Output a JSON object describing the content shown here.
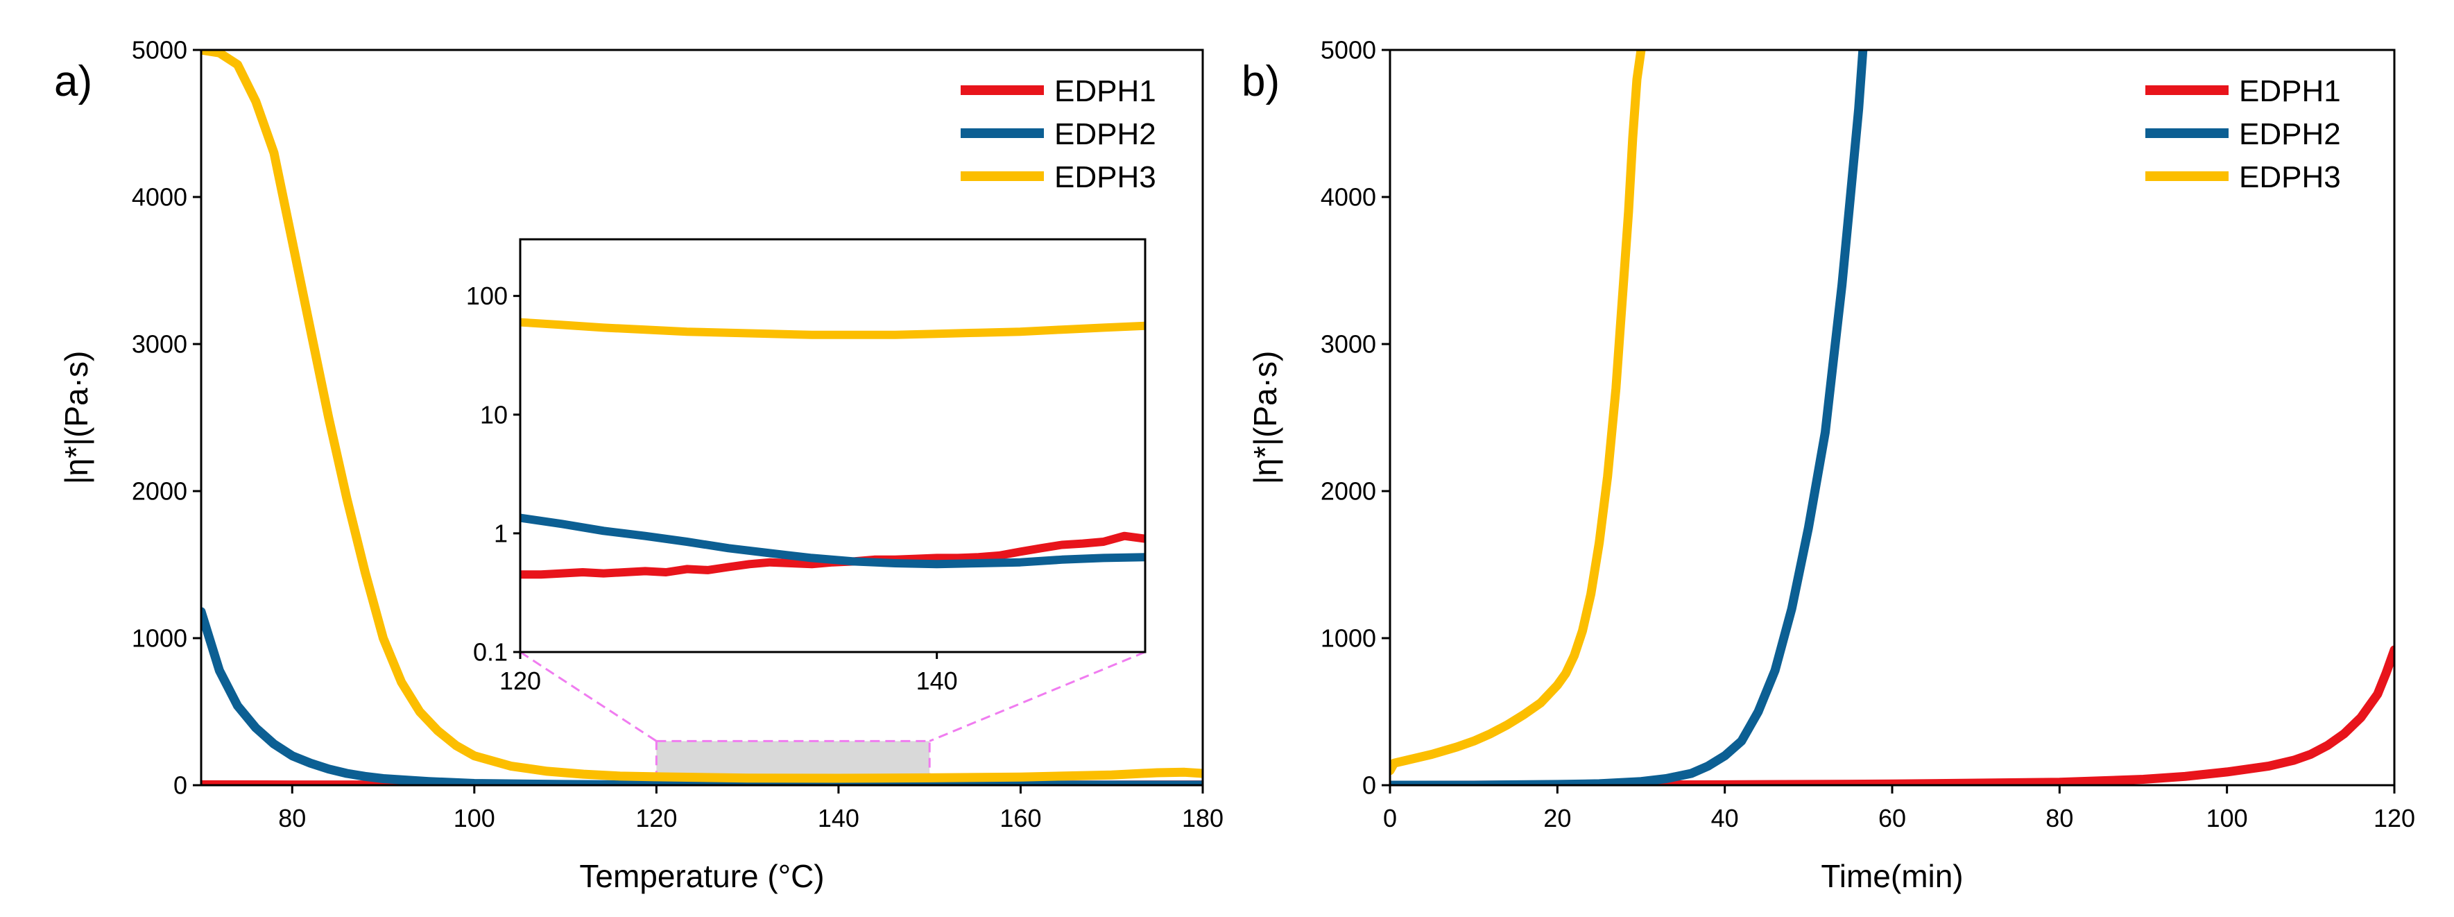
{
  "colors": {
    "EDPH1": "#e8141b",
    "EDPH2": "#0c5f93",
    "EDPH3": "#fcbe00",
    "zoom_box": "#d9d9d9",
    "zoom_line": "#f07cf0"
  },
  "chart_data": [
    {
      "type": "line",
      "panel_label": "a)",
      "xlabel": "Temperature (°C)",
      "ylabel": "|η*|(Pa·s)",
      "xlim": [
        70,
        180
      ],
      "ylim": [
        0,
        5000
      ],
      "xticks": [
        80,
        100,
        120,
        140,
        160,
        180
      ],
      "xtick_labels": [
        "80",
        "100",
        "120",
        "140",
        "160",
        "180"
      ],
      "yticks": [
        0,
        1000,
        2000,
        3000,
        4000,
        5000
      ],
      "ytick_labels": [
        "0",
        "1000",
        "2000",
        "3000",
        "4000",
        "5000"
      ],
      "legend": [
        "EDPH1",
        "EDPH2",
        "EDPH3"
      ],
      "legend_position": "top-right",
      "zoom_region": {
        "x": [
          120,
          150
        ],
        "y": [
          0,
          300
        ]
      },
      "series": [
        {
          "name": "EDPH1",
          "x": [
            70,
            80,
            90,
            100,
            110,
            120,
            130,
            140,
            150,
            160,
            170,
            180
          ],
          "y": [
            3,
            2,
            1.5,
            1,
            0.8,
            0.5,
            0.5,
            0.6,
            0.8,
            1,
            1.5,
            2
          ]
        },
        {
          "name": "EDPH2",
          "x": [
            70,
            72,
            74,
            76,
            78,
            80,
            82,
            84,
            86,
            88,
            90,
            95,
            100,
            110,
            120,
            140,
            160,
            180
          ],
          "y": [
            1180,
            780,
            540,
            390,
            280,
            200,
            150,
            110,
            80,
            60,
            45,
            25,
            12,
            5,
            1.3,
            0.6,
            0.6,
            0.6
          ]
        },
        {
          "name": "EDPH3",
          "x": [
            70,
            72,
            74,
            76,
            78,
            80,
            82,
            84,
            86,
            88,
            90,
            92,
            94,
            96,
            98,
            100,
            104,
            108,
            112,
            116,
            120,
            130,
            140,
            150,
            160,
            170,
            175,
            178,
            180
          ],
          "y": [
            5000,
            4980,
            4900,
            4650,
            4300,
            3700,
            3100,
            2500,
            1950,
            1450,
            1000,
            700,
            500,
            370,
            270,
            200,
            130,
            95,
            75,
            62,
            57,
            48,
            47,
            50,
            55,
            70,
            85,
            88,
            80
          ]
        }
      ]
    },
    {
      "type": "line",
      "panel": "inset",
      "yscale": "log",
      "xlim": [
        120,
        150
      ],
      "ylim": [
        0.1,
        300
      ],
      "xticks": [
        120,
        140
      ],
      "xtick_labels": [
        "120",
        "140"
      ],
      "yticks": [
        0.1,
        1,
        10,
        100
      ],
      "ytick_labels": [
        "0.1",
        "1",
        "10",
        "100"
      ],
      "series": [
        {
          "name": "EDPH1",
          "x": [
            120,
            121,
            122,
            123,
            124,
            125,
            126,
            127,
            128,
            129,
            130,
            131,
            132,
            133,
            134,
            135,
            136,
            137,
            138,
            139,
            140,
            141,
            142,
            143,
            144,
            145,
            146,
            147,
            148,
            149,
            150
          ],
          "y": [
            0.45,
            0.45,
            0.46,
            0.47,
            0.46,
            0.47,
            0.48,
            0.47,
            0.5,
            0.49,
            0.52,
            0.55,
            0.57,
            0.56,
            0.55,
            0.57,
            0.58,
            0.6,
            0.6,
            0.61,
            0.62,
            0.62,
            0.63,
            0.65,
            0.7,
            0.75,
            0.8,
            0.82,
            0.85,
            0.95,
            0.9
          ]
        },
        {
          "name": "EDPH2",
          "x": [
            120,
            122,
            124,
            126,
            128,
            130,
            132,
            134,
            136,
            138,
            140,
            142,
            144,
            146,
            148,
            150
          ],
          "y": [
            1.35,
            1.2,
            1.05,
            0.95,
            0.85,
            0.75,
            0.68,
            0.62,
            0.58,
            0.56,
            0.55,
            0.56,
            0.57,
            0.6,
            0.62,
            0.63
          ]
        },
        {
          "name": "EDPH3",
          "x": [
            120,
            122,
            124,
            126,
            128,
            130,
            132,
            134,
            136,
            138,
            140,
            142,
            144,
            146,
            148,
            150
          ],
          "y": [
            60,
            57,
            54,
            52,
            50,
            49,
            48,
            47,
            47,
            47,
            48,
            49,
            50,
            52,
            54,
            56
          ]
        }
      ]
    },
    {
      "type": "line",
      "panel_label": "b)",
      "xlabel": "Time(min)",
      "ylabel": "|η*|(Pa·s)",
      "xlim": [
        0,
        120
      ],
      "ylim": [
        0,
        5000
      ],
      "xticks": [
        0,
        20,
        40,
        60,
        80,
        100,
        120
      ],
      "xtick_labels": [
        "0",
        "20",
        "40",
        "60",
        "80",
        "100",
        "120"
      ],
      "yticks": [
        0,
        1000,
        2000,
        3000,
        4000,
        5000
      ],
      "ytick_labels": [
        "0",
        "1000",
        "2000",
        "3000",
        "4000",
        "5000"
      ],
      "legend": [
        "EDPH1",
        "EDPH2",
        "EDPH3"
      ],
      "legend_position": "top-right",
      "series": [
        {
          "name": "EDPH1",
          "x": [
            0,
            20,
            40,
            60,
            80,
            90,
            95,
            100,
            105,
            108,
            110,
            112,
            114,
            116,
            118,
            119,
            120
          ],
          "y": [
            0,
            1,
            3,
            8,
            20,
            40,
            60,
            90,
            130,
            170,
            210,
            270,
            350,
            460,
            620,
            760,
            920
          ]
        },
        {
          "name": "EDPH2",
          "x": [
            0,
            10,
            20,
            25,
            30,
            33,
            36,
            38,
            40,
            42,
            43,
            44,
            46,
            48,
            50,
            52,
            53,
            54,
            55,
            56,
            56.5
          ],
          "y": [
            0,
            0,
            5,
            10,
            25,
            45,
            80,
            130,
            200,
            300,
            400,
            500,
            780,
            1200,
            1750,
            2400,
            2900,
            3400,
            4000,
            4600,
            5000
          ]
        },
        {
          "name": "EDPH3",
          "x": [
            0,
            0.5,
            2,
            5,
            8,
            10,
            12,
            14,
            16,
            18,
            20,
            21,
            22,
            23,
            24,
            25,
            26,
            27,
            27.5,
            28,
            28.5,
            29,
            29.5,
            30
          ],
          "y": [
            100,
            150,
            170,
            210,
            260,
            300,
            350,
            410,
            480,
            560,
            680,
            760,
            880,
            1050,
            1300,
            1650,
            2100,
            2700,
            3100,
            3500,
            3900,
            4400,
            4800,
            5000
          ]
        }
      ]
    }
  ]
}
